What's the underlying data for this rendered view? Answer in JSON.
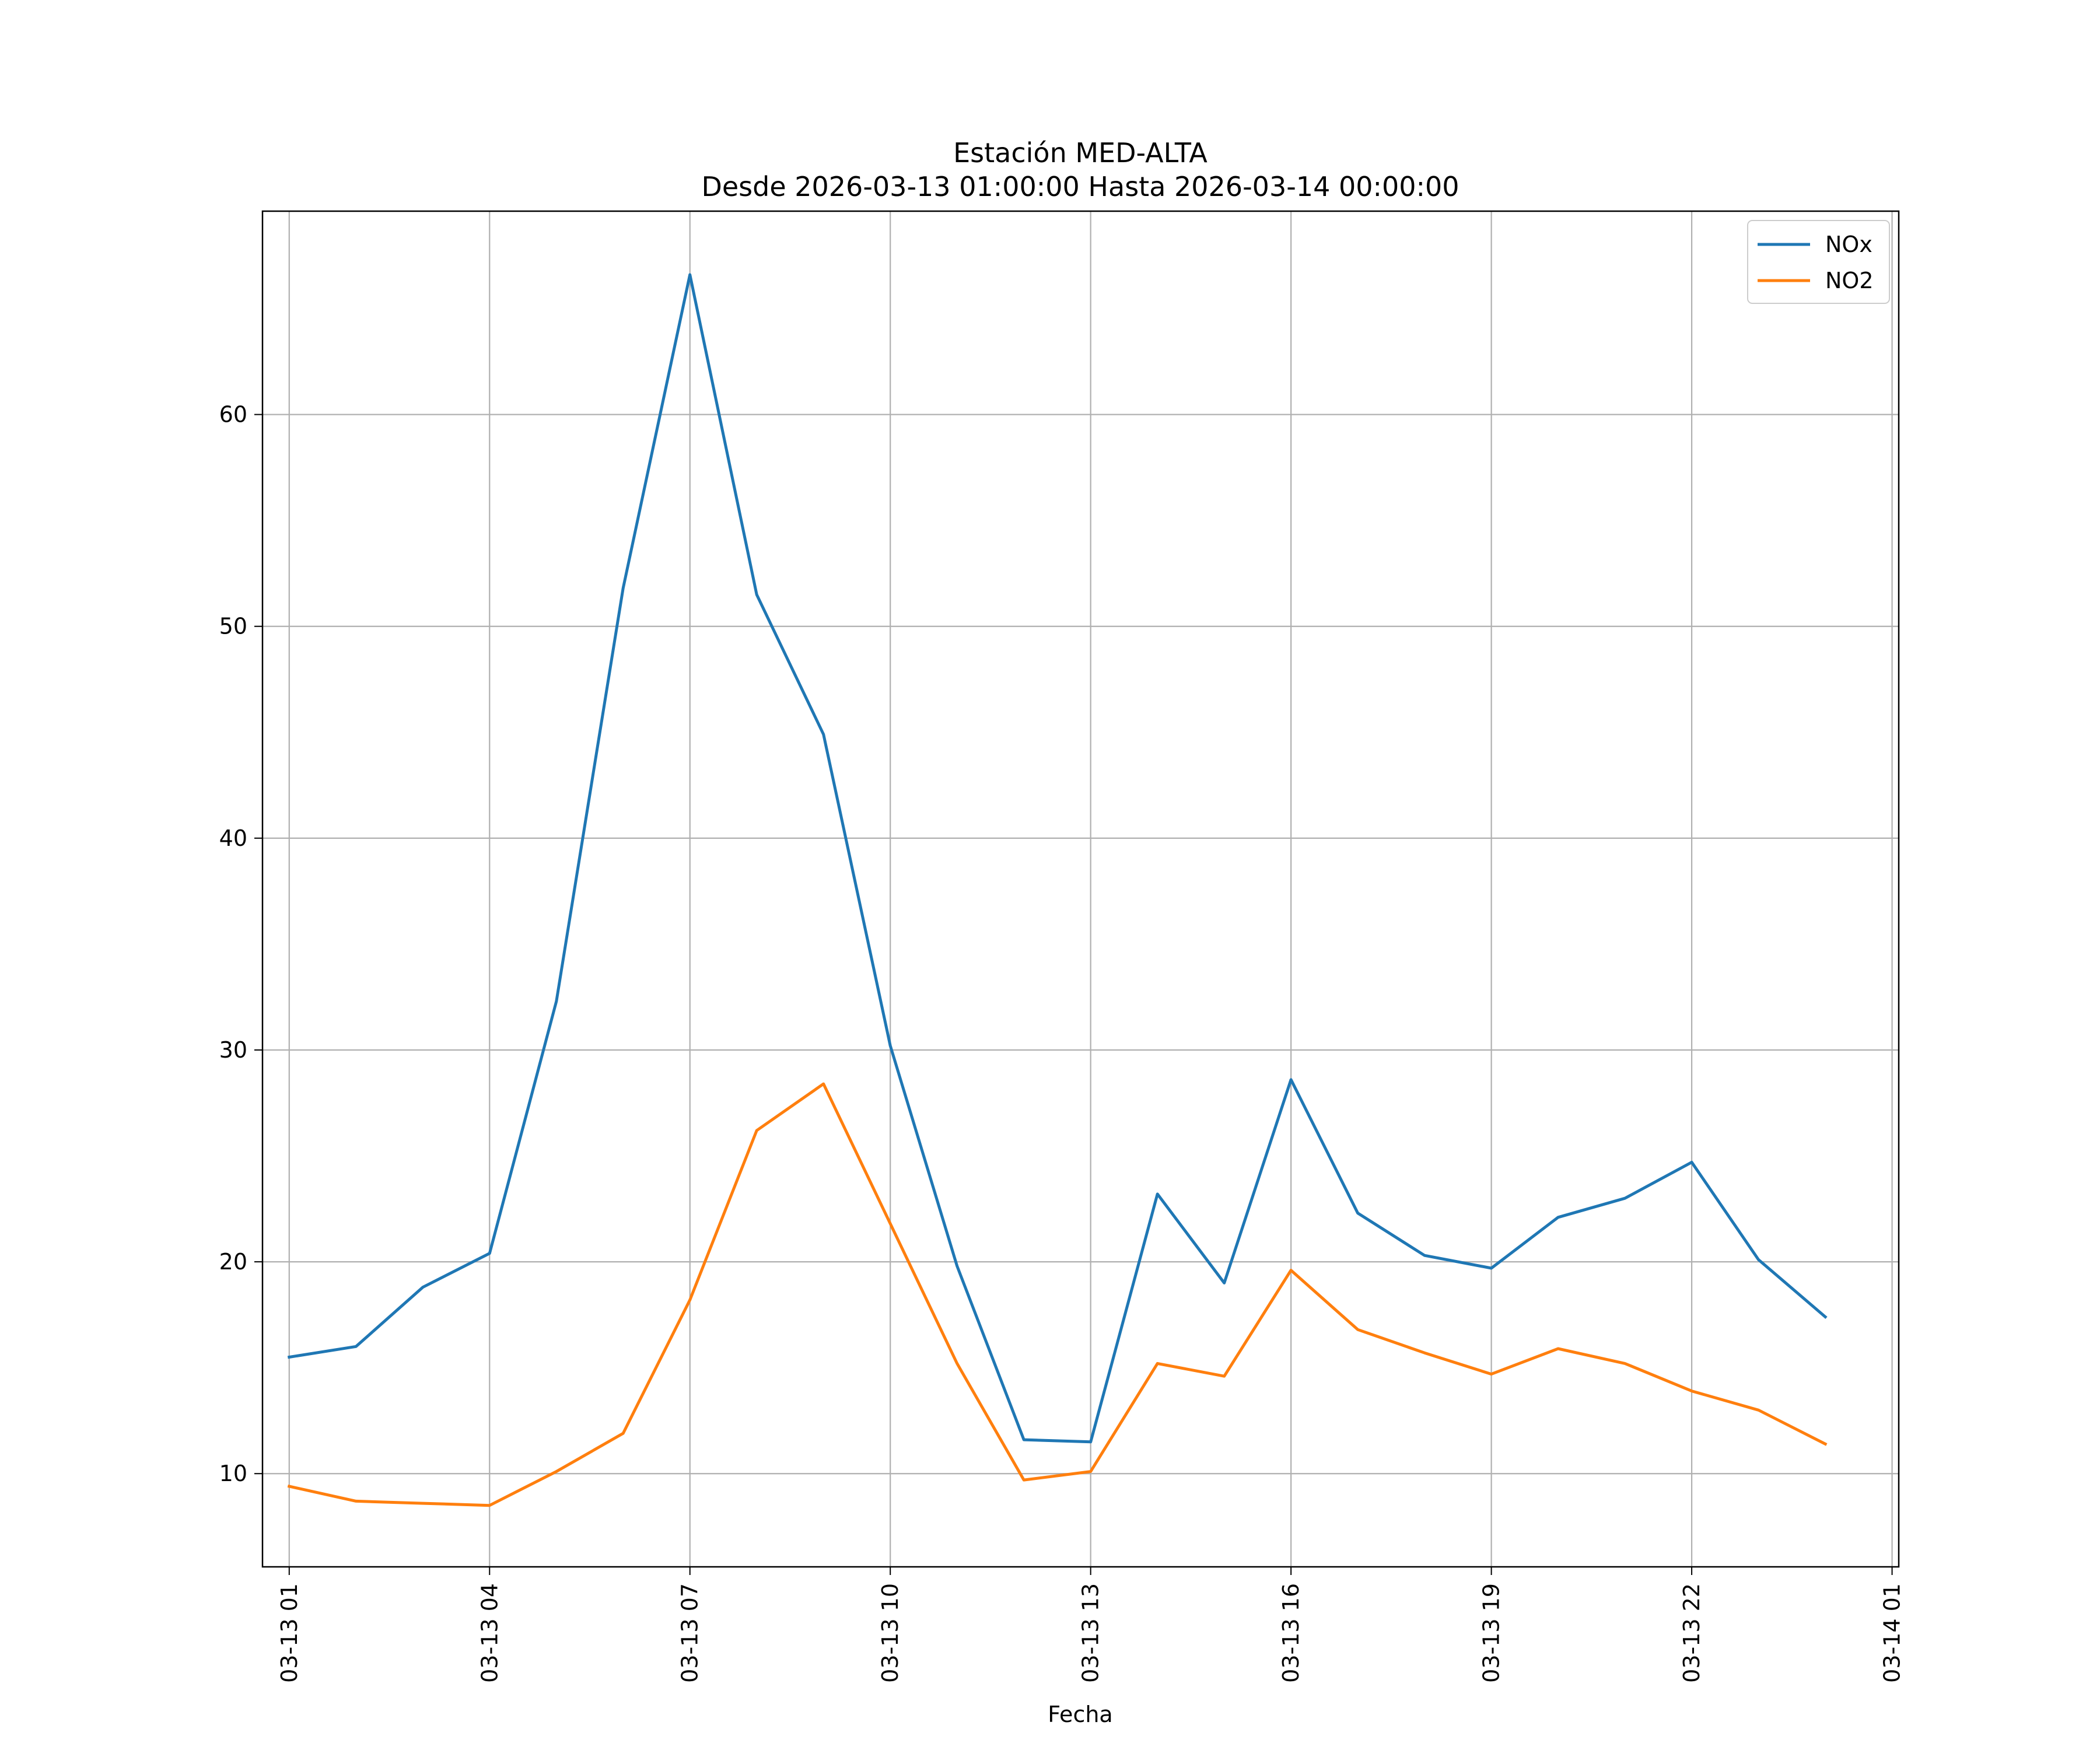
{
  "chart_data": {
    "type": "line",
    "title": [
      "Estación MED-ALTA",
      "Desde 2026-03-13 01:00:00 Hasta 2026-03-14 00:00:00"
    ],
    "xlabel": "Fecha",
    "ylabel": "",
    "x": [
      "03-13 01",
      "03-13 02",
      "03-13 03",
      "03-13 04",
      "03-13 05",
      "03-13 06",
      "03-13 07",
      "03-13 08",
      "03-13 09",
      "03-13 10",
      "03-13 11",
      "03-13 12",
      "03-13 13",
      "03-13 14",
      "03-13 15",
      "03-13 16",
      "03-13 17",
      "03-13 18",
      "03-13 19",
      "03-13 20",
      "03-13 21",
      "03-13 22",
      "03-13 23",
      "03-14 00"
    ],
    "x_ticks": [
      "03-13 01",
      "03-13 04",
      "03-13 07",
      "03-13 10",
      "03-13 13",
      "03-13 16",
      "03-13 19",
      "03-13 22",
      "03-14 01"
    ],
    "x_range_hours": [
      -0.4,
      24.1
    ],
    "y_ticks": [
      10,
      20,
      30,
      40,
      50,
      60
    ],
    "ylim": [
      5.6,
      69.6
    ],
    "grid": true,
    "legend": "top-right",
    "series": [
      {
        "name": "NOx",
        "color": "#1f77b4",
        "values": [
          15.5,
          16.0,
          18.8,
          20.4,
          32.3,
          51.8,
          66.6,
          51.5,
          44.9,
          30.2,
          19.8,
          11.6,
          11.5,
          23.2,
          19.0,
          28.6,
          22.3,
          20.3,
          19.7,
          22.1,
          23.0,
          24.7,
          20.1,
          17.4
        ]
      },
      {
        "name": "NO2",
        "color": "#ff7f0e",
        "values": [
          9.4,
          8.7,
          8.6,
          8.5,
          10.1,
          11.9,
          18.2,
          26.2,
          28.4,
          21.8,
          15.2,
          9.7,
          10.1,
          15.2,
          14.6,
          19.6,
          16.8,
          15.7,
          14.7,
          15.9,
          15.2,
          13.9,
          13.0,
          11.4
        ]
      }
    ]
  }
}
